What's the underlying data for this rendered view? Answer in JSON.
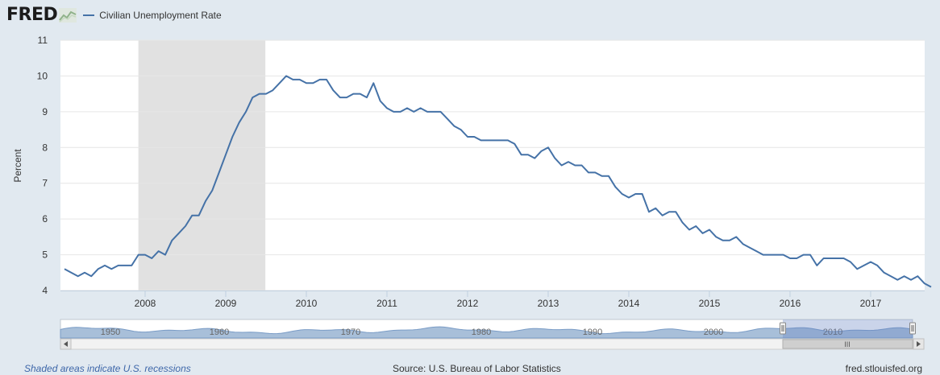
{
  "brand": {
    "logo_text": "FRED"
  },
  "legend": {
    "series_label": "Civilian Unemployment Rate"
  },
  "footer": {
    "recession_note": "Shaded areas indicate U.S. recessions",
    "source": "Source: U.S. Bureau of Labor Statistics",
    "site": "fred.stlouisfed.org"
  },
  "colors": {
    "line": "#4572a7",
    "recession": "#e1e1e1",
    "background": "#e1e9f0",
    "plot": "#ffffff"
  },
  "navigator": {
    "labels": [
      "1950",
      "1960",
      "1970",
      "1980",
      "1990",
      "2000",
      "2010"
    ],
    "scrollbar_grip": "III"
  },
  "chart_data": {
    "type": "line",
    "title": "",
    "xlabel": "",
    "ylabel": "Percent",
    "ylim": [
      4,
      11
    ],
    "yticks": [
      4,
      5,
      6,
      7,
      8,
      9,
      10,
      11
    ],
    "xticks": [
      "2008",
      "2009",
      "2010",
      "2011",
      "2012",
      "2013",
      "2014",
      "2015",
      "2016",
      "2017"
    ],
    "grid": true,
    "recessions": [
      {
        "start": "2007-12",
        "end": "2009-06"
      }
    ],
    "series": [
      {
        "name": "Civilian Unemployment Rate",
        "start": "2007-01",
        "frequency": "monthly",
        "values": [
          4.6,
          4.5,
          4.4,
          4.5,
          4.4,
          4.6,
          4.7,
          4.6,
          4.7,
          4.7,
          4.7,
          5.0,
          5.0,
          4.9,
          5.1,
          5.0,
          5.4,
          5.6,
          5.8,
          6.1,
          6.1,
          6.5,
          6.8,
          7.3,
          7.8,
          8.3,
          8.7,
          9.0,
          9.4,
          9.5,
          9.5,
          9.6,
          9.8,
          10.0,
          9.9,
          9.9,
          9.8,
          9.8,
          9.9,
          9.9,
          9.6,
          9.4,
          9.4,
          9.5,
          9.5,
          9.4,
          9.8,
          9.3,
          9.1,
          9.0,
          9.0,
          9.1,
          9.0,
          9.1,
          9.0,
          9.0,
          9.0,
          8.8,
          8.6,
          8.5,
          8.3,
          8.3,
          8.2,
          8.2,
          8.2,
          8.2,
          8.2,
          8.1,
          7.8,
          7.8,
          7.7,
          7.9,
          8.0,
          7.7,
          7.5,
          7.6,
          7.5,
          7.5,
          7.3,
          7.3,
          7.2,
          7.2,
          6.9,
          6.7,
          6.6,
          6.7,
          6.7,
          6.2,
          6.3,
          6.1,
          6.2,
          6.2,
          5.9,
          5.7,
          5.8,
          5.6,
          5.7,
          5.5,
          5.4,
          5.4,
          5.5,
          5.3,
          5.2,
          5.1,
          5.0,
          5.0,
          5.0,
          5.0,
          4.9,
          4.9,
          5.0,
          5.0,
          4.7,
          4.9,
          4.9,
          4.9,
          4.9,
          4.8,
          4.6,
          4.7,
          4.8,
          4.7,
          4.5,
          4.4,
          4.3,
          4.4,
          4.3,
          4.4,
          4.2,
          4.1
        ]
      }
    ]
  }
}
